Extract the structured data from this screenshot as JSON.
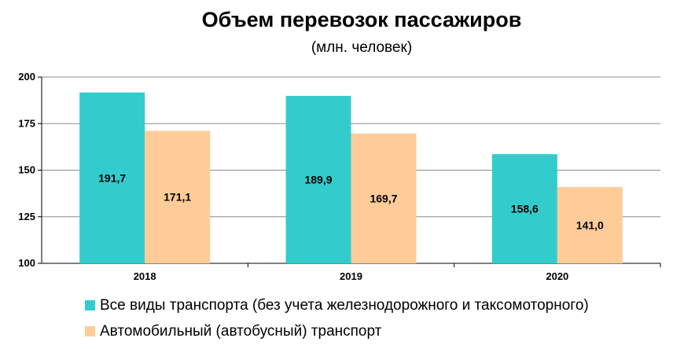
{
  "chart_data": {
    "type": "bar",
    "title": "Объем перевозок пассажиров",
    "subtitle": "(млн. человек)",
    "xlabel": "",
    "ylabel": "",
    "categories": [
      "2018",
      "2019",
      "2020"
    ],
    "ylim": [
      100,
      200
    ],
    "yticks": [
      100,
      125,
      150,
      175,
      200
    ],
    "grid": true,
    "legend_position": "bottom",
    "series": [
      {
        "name": "Все виды транспорта (без учета железнодорожного и таксомоторного)",
        "values": [
          191.7,
          189.9,
          158.6
        ],
        "labels": [
          "191,7",
          "189,9",
          "158,6"
        ],
        "color": "#33cccc"
      },
      {
        "name": "Автомобильный (автобусный) транспорт",
        "values": [
          171.1,
          169.7,
          141.0
        ],
        "labels": [
          "171,1",
          "169,7",
          "141,0"
        ],
        "color": "#ffcc99"
      }
    ]
  }
}
